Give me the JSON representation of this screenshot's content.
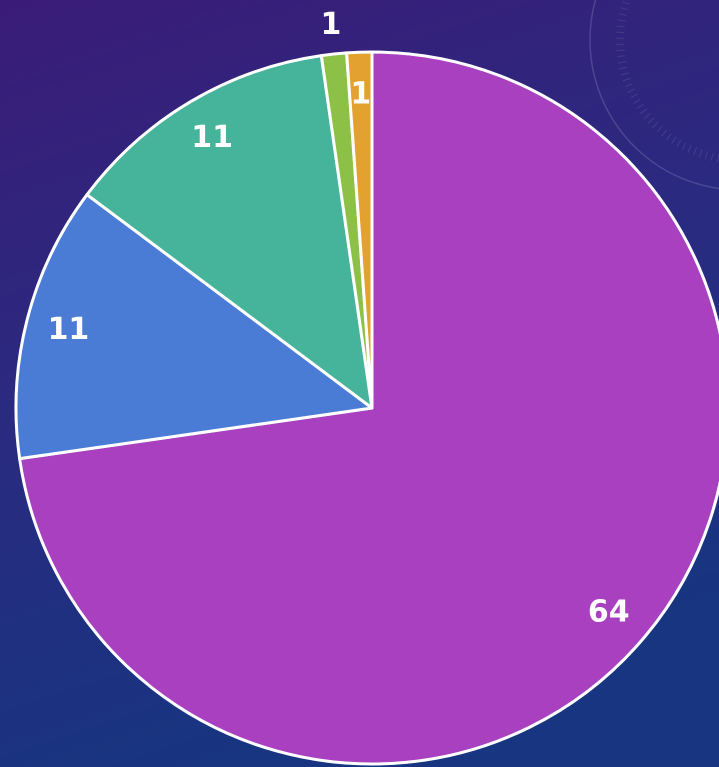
{
  "chart_data": {
    "type": "pie",
    "values": [
      64,
      11,
      11,
      1,
      1
    ],
    "colors": [
      "#a840c0",
      "#4a7cd6",
      "#46b39b",
      "#8cc046",
      "#e3a12f"
    ]
  }
}
